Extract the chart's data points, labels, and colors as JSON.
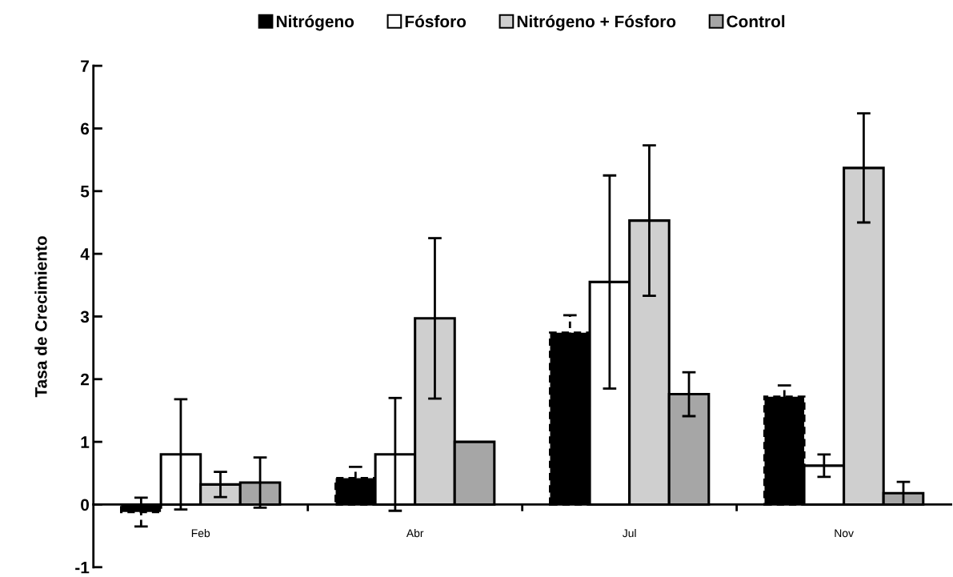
{
  "chart_data": {
    "type": "bar",
    "ylabel": "Tasa de Crecimiento",
    "categories": [
      "Feb",
      "Abr",
      "Jul",
      "Nov"
    ],
    "series": [
      {
        "name": "Nitrógeno",
        "color": "#000000",
        "line_style": "dashed",
        "values": [
          -0.12,
          0.42,
          2.74,
          1.72
        ],
        "errors": [
          0.23,
          0.18,
          0.28,
          0.18
        ]
      },
      {
        "name": "Fósforo",
        "color": "#ffffff",
        "values": [
          0.8,
          0.8,
          3.55,
          0.62
        ],
        "errors": [
          0.88,
          0.9,
          1.7,
          0.18
        ]
      },
      {
        "name": "Nitrógeno + Fósforo",
        "color": "#cfcfcf",
        "values": [
          0.32,
          2.97,
          4.53,
          5.37
        ],
        "errors": [
          0.2,
          1.28,
          1.2,
          0.87
        ]
      },
      {
        "name": "Control",
        "color": "#a6a6a6",
        "values": [
          0.35,
          1.0,
          1.76,
          0.18
        ],
        "errors": [
          0.4,
          null,
          0.35,
          0.18
        ]
      }
    ],
    "ylim": [
      -1,
      7
    ],
    "yticks": [
      -1,
      0,
      1,
      2,
      3,
      4,
      5,
      6,
      7
    ],
    "legend": "top",
    "grid": false
  }
}
